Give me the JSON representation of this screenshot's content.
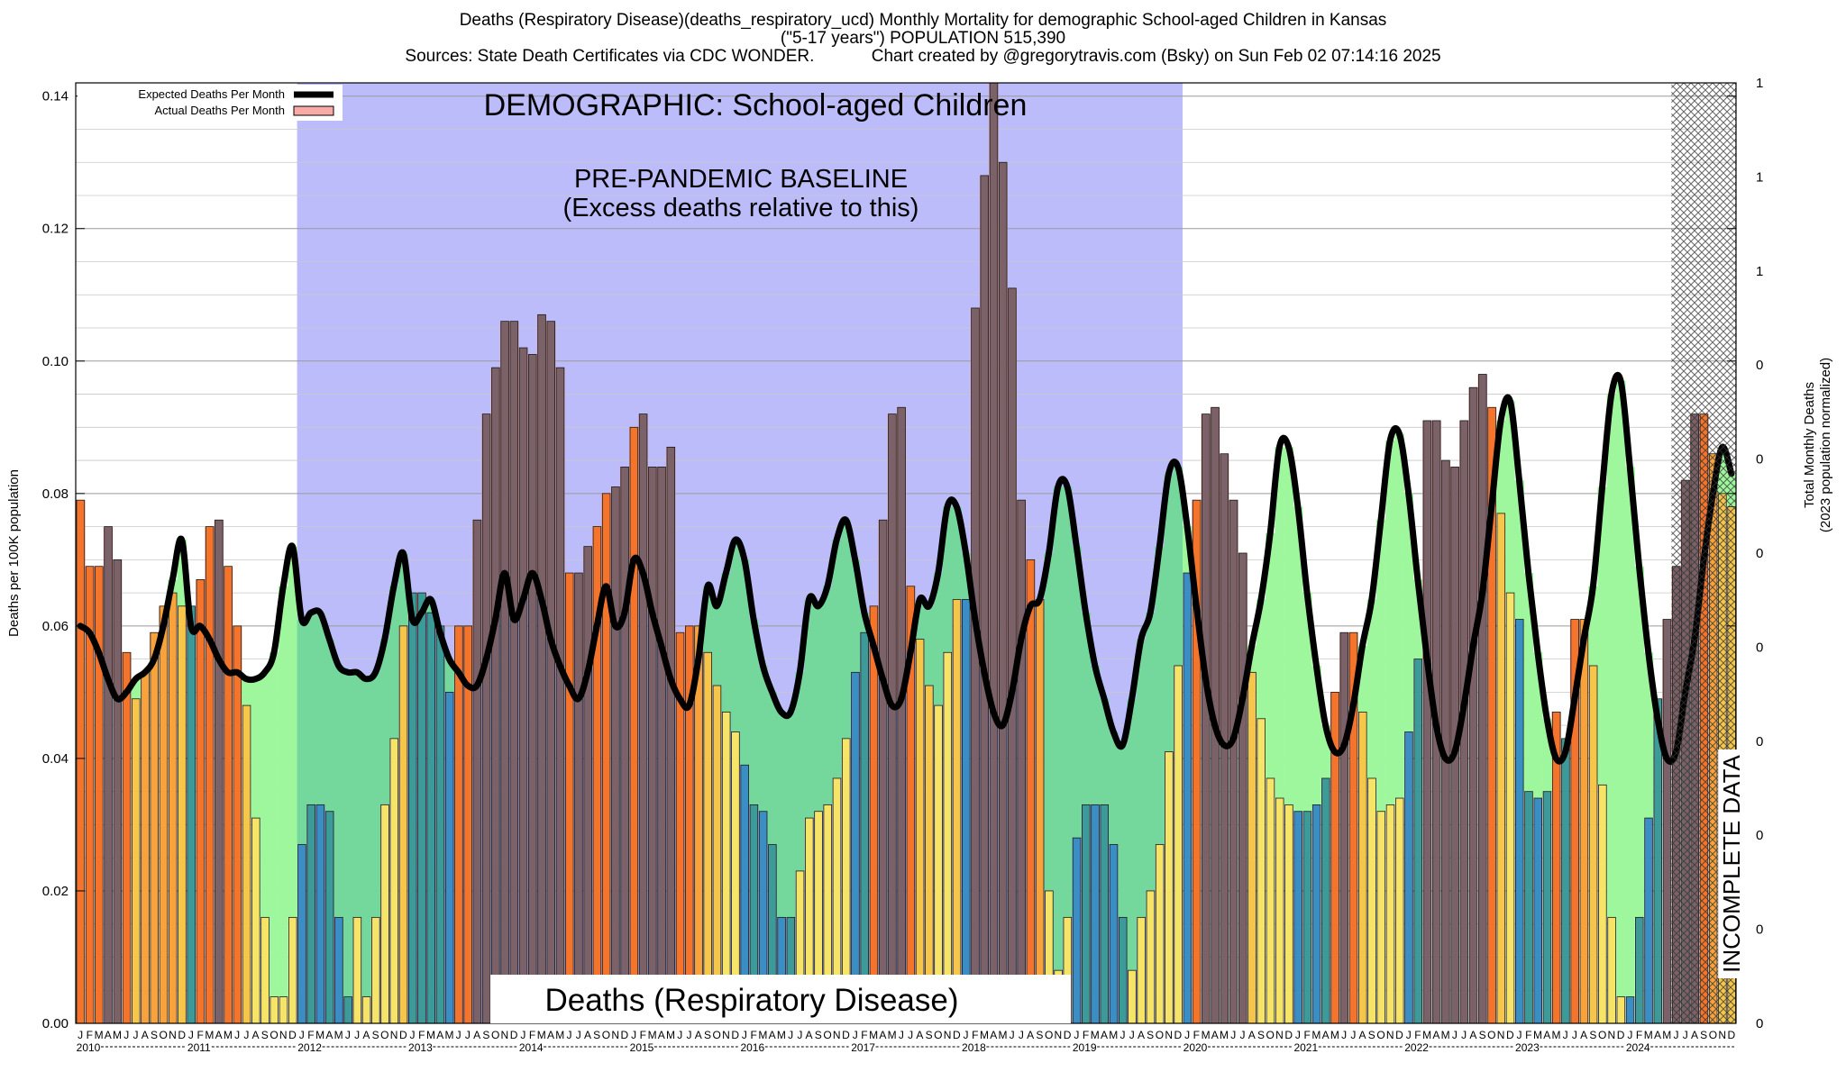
{
  "header": {
    "line1": "Deaths (Respiratory Disease)(deaths_respiratory_ucd) Monthly Mortality for demographic School-aged Children in Kansas",
    "line2": "(\"5-17 years\") POPULATION 515,390",
    "line3": "Sources: State Death Certificates via CDC WONDER.            Chart created by @gregorytravis.com (Bsky) on Sun Feb 02 07:14:16 2025"
  },
  "chart_data": {
    "type": "bar",
    "title": "Deaths (Respiratory Disease)(deaths_respiratory_ucd) Monthly Mortality for demographic School-aged Children in Kansas",
    "ylabel": "Deaths per 100K population",
    "y2label_line1": "Total Monthly Deaths",
    "y2label_line2": "(2023 population normalized)",
    "ylim": [
      0,
      0.142
    ],
    "yticks": [
      "0.00",
      "0.02",
      "0.04",
      "0.06",
      "0.08",
      "0.10",
      "0.12",
      "0.14"
    ],
    "y2ticks": [
      "1",
      "1",
      "1",
      "0",
      "0",
      "0",
      "0",
      "0",
      "0",
      "0",
      "0"
    ],
    "x_start": "2010-01",
    "month_letters": [
      "J",
      "F",
      "M",
      "A",
      "M",
      "J",
      "J",
      "A",
      "S",
      "O",
      "N",
      "D"
    ],
    "years": [
      "2010",
      "2011",
      "2012",
      "2013",
      "2014",
      "2015",
      "2016",
      "2017",
      "2018",
      "2019",
      "2020",
      "2021",
      "2022",
      "2023",
      "2024"
    ],
    "legend": {
      "position": "top-left",
      "expected": "Expected Deaths Per Month",
      "actual": "Actual Deaths Per Month"
    },
    "annotations": {
      "demographic": "DEMOGRAPHIC: School-aged Children",
      "baseline_line1": "PRE-PANDEMIC BASELINE",
      "baseline_line2": "(Excess deaths relative to this)",
      "cause": "Deaths (Respiratory Disease)",
      "incomplete": "INCOMPLETE DATA"
    },
    "baseline_months": [
      24,
      119
    ],
    "incomplete_from_month": 173,
    "series": [
      {
        "name": "Actual Deaths Per Month",
        "values": [
          0.079,
          0.069,
          0.069,
          0.075,
          0.07,
          0.056,
          0.049,
          0.053,
          0.059,
          0.063,
          0.065,
          0.063,
          0.063,
          0.067,
          0.075,
          0.076,
          0.069,
          0.06,
          0.048,
          0.031,
          0.016,
          0.004,
          0.004,
          0.016,
          0.027,
          0.033,
          0.033,
          0.032,
          0.016,
          0.004,
          0.016,
          0.004,
          0.016,
          0.033,
          0.043,
          0.06,
          0.065,
          0.065,
          0.062,
          0.06,
          0.05,
          0.06,
          0.06,
          0.076,
          0.092,
          0.099,
          0.106,
          0.106,
          0.102,
          0.101,
          0.107,
          0.106,
          0.099,
          0.068,
          0.068,
          0.072,
          0.075,
          0.08,
          0.081,
          0.084,
          0.09,
          0.092,
          0.084,
          0.084,
          0.087,
          0.059,
          0.06,
          0.06,
          0.056,
          0.051,
          0.047,
          0.044,
          0.039,
          0.033,
          0.032,
          0.027,
          0.016,
          0.016,
          0.023,
          0.031,
          0.032,
          0.033,
          0.037,
          0.043,
          0.053,
          0.059,
          0.063,
          0.076,
          0.092,
          0.093,
          0.066,
          0.058,
          0.051,
          0.048,
          0.056,
          0.064,
          0.064,
          0.108,
          0.128,
          0.142,
          0.13,
          0.111,
          0.079,
          0.07,
          0.064,
          0.02,
          0.008,
          0.016,
          0.028,
          0.033,
          0.033,
          0.033,
          0.027,
          0.016,
          0.008,
          0.016,
          0.02,
          0.027,
          0.041,
          0.054,
          0.068,
          0.079,
          0.092,
          0.093,
          0.086,
          0.079,
          0.071,
          0.053,
          0.046,
          0.037,
          0.034,
          0.033,
          0.032,
          0.032,
          0.033,
          0.037,
          0.05,
          0.059,
          0.059,
          0.047,
          0.037,
          0.032,
          0.033,
          0.034,
          0.044,
          0.055,
          0.091,
          0.091,
          0.085,
          0.084,
          0.091,
          0.096,
          0.098,
          0.093,
          0.077,
          0.065,
          0.061,
          0.035,
          0.034,
          0.035,
          0.047,
          0.043,
          0.061,
          0.061,
          0.054,
          0.036,
          0.016,
          0.004,
          0.004,
          0.016,
          0.031,
          0.049,
          0.061,
          0.069,
          0.082,
          0.092,
          0.092,
          0.086,
          0.08,
          0.078
        ]
      },
      {
        "name": "Expected Deaths Per Month",
        "values": [
          0.06,
          0.059,
          0.056,
          0.052,
          0.049,
          0.05,
          0.052,
          0.053,
          0.055,
          0.06,
          0.067,
          0.073,
          0.06,
          0.06,
          0.058,
          0.055,
          0.053,
          0.053,
          0.052,
          0.052,
          0.053,
          0.056,
          0.066,
          0.072,
          0.061,
          0.062,
          0.062,
          0.058,
          0.054,
          0.053,
          0.053,
          0.052,
          0.053,
          0.058,
          0.066,
          0.071,
          0.061,
          0.062,
          0.064,
          0.059,
          0.055,
          0.053,
          0.051,
          0.051,
          0.055,
          0.061,
          0.068,
          0.061,
          0.064,
          0.068,
          0.064,
          0.058,
          0.054,
          0.051,
          0.049,
          0.053,
          0.06,
          0.066,
          0.06,
          0.062,
          0.07,
          0.068,
          0.062,
          0.057,
          0.052,
          0.049,
          0.048,
          0.055,
          0.066,
          0.063,
          0.068,
          0.073,
          0.07,
          0.061,
          0.054,
          0.05,
          0.047,
          0.047,
          0.053,
          0.064,
          0.063,
          0.066,
          0.073,
          0.076,
          0.07,
          0.062,
          0.057,
          0.052,
          0.048,
          0.049,
          0.056,
          0.064,
          0.063,
          0.068,
          0.078,
          0.078,
          0.071,
          0.061,
          0.053,
          0.047,
          0.045,
          0.05,
          0.058,
          0.063,
          0.064,
          0.071,
          0.081,
          0.081,
          0.072,
          0.062,
          0.054,
          0.049,
          0.044,
          0.042,
          0.049,
          0.058,
          0.062,
          0.072,
          0.083,
          0.084,
          0.075,
          0.063,
          0.052,
          0.045,
          0.042,
          0.043,
          0.049,
          0.057,
          0.064,
          0.074,
          0.087,
          0.087,
          0.078,
          0.065,
          0.054,
          0.045,
          0.041,
          0.042,
          0.048,
          0.057,
          0.064,
          0.076,
          0.088,
          0.089,
          0.08,
          0.067,
          0.055,
          0.045,
          0.04,
          0.041,
          0.048,
          0.057,
          0.065,
          0.078,
          0.091,
          0.094,
          0.082,
          0.068,
          0.056,
          0.046,
          0.04,
          0.041,
          0.049,
          0.058,
          0.066,
          0.081,
          0.095,
          0.097,
          0.084,
          0.069,
          0.056,
          0.046,
          0.04,
          0.041,
          0.05,
          0.058,
          0.07,
          0.08,
          0.087,
          0.083
        ]
      }
    ]
  }
}
